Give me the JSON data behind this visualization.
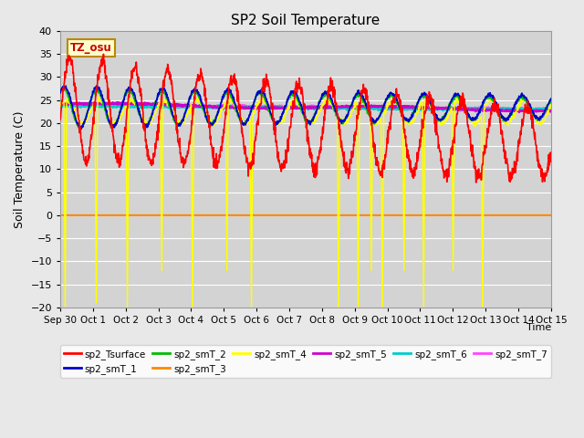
{
  "title": "SP2 Soil Temperature",
  "xlabel": "Time",
  "ylabel": "Soil Temperature (C)",
  "ylim": [
    -20,
    40
  ],
  "yticks": [
    -20,
    -15,
    -10,
    -5,
    0,
    5,
    10,
    15,
    20,
    25,
    30,
    35,
    40
  ],
  "date_labels": [
    "Sep 30",
    "Oct 1",
    "Oct 2",
    "Oct 3",
    "Oct 4",
    "Oct 5",
    "Oct 6",
    "Oct 7",
    "Oct 8",
    "Oct 9",
    "Oct 10",
    "Oct 11",
    "Oct 12",
    "Oct 13",
    "Oct 14",
    "Oct 15"
  ],
  "tz_label": "TZ_osu",
  "legend": [
    {
      "label": "sp2_Tsurface",
      "color": "#ff0000",
      "lw": 1.2
    },
    {
      "label": "sp2_smT_1",
      "color": "#0000cc",
      "lw": 1.2
    },
    {
      "label": "sp2_smT_2",
      "color": "#00bb00",
      "lw": 1.2
    },
    {
      "label": "sp2_smT_3",
      "color": "#ff8800",
      "lw": 1.5
    },
    {
      "label": "sp2_smT_4",
      "color": "#ffff00",
      "lw": 1.0
    },
    {
      "label": "sp2_smT_5",
      "color": "#cc00cc",
      "lw": 1.8
    },
    {
      "label": "sp2_smT_6",
      "color": "#00cccc",
      "lw": 1.8
    },
    {
      "label": "sp2_smT_7",
      "color": "#ff44ff",
      "lw": 1.5
    }
  ],
  "bg_color": "#e8e8e8",
  "plot_bg_color": "#d3d3d3",
  "grid_color": "#ffffff",
  "figsize": [
    6.4,
    4.8
  ],
  "dpi": 100
}
